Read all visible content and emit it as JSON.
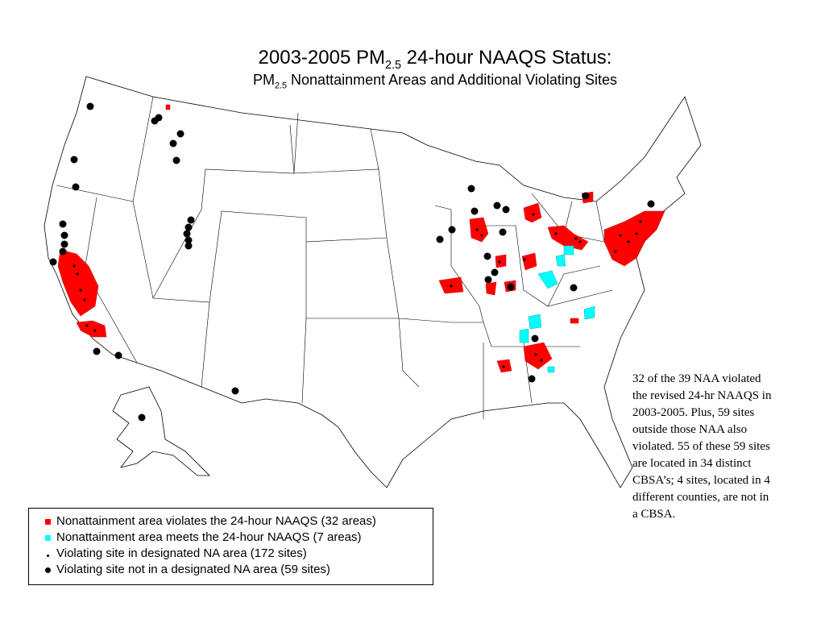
{
  "header": {
    "title": {
      "pre": "2003-2005 PM",
      "sub": "2.5",
      "post": " 24-hour NAAQS Status:"
    },
    "subtitle": {
      "pre": "PM",
      "sub": "2.5",
      "post": " Nonattainment Areas and Additional Violating Sites"
    }
  },
  "legend": [
    {
      "label": "Nonattainment area violates the 24-hour NAAQS (32 areas)",
      "color": "#ff0000",
      "symbol": "square"
    },
    {
      "label": "Nonattainment area meets the 24-hour NAAQS (7 areas)",
      "color": "#00ffff",
      "symbol": "square"
    },
    {
      "label": "Violating site in designated NA area (172 sites)",
      "color": "#000000",
      "symbol": "small-dot"
    },
    {
      "label": "Violating site not in a designated NA area (59 sites)",
      "color": "#000000",
      "symbol": "dot"
    }
  ],
  "note": [
    "32 of the 39 NAA violated",
    "the revised 24-hr NAAQS in",
    "2003-2005.  Plus, 59 sites",
    "outside those NAA also",
    "violated.  55 of these 59 sites",
    "are located in 34 distinct",
    "CBSA’s; 4 sites, located in 4",
    "different counties, are not in",
    "a CBSA."
  ]
}
